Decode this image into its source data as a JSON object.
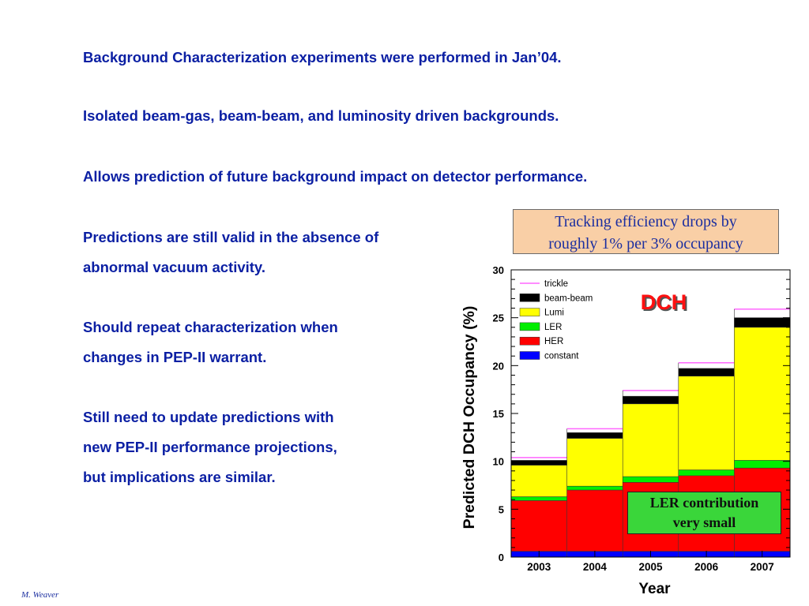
{
  "bullets": [
    {
      "lines": [
        "Background Characterization experiments were performed in Jan’04."
      ]
    },
    {
      "lines": [
        "Isolated beam-gas, beam-beam, and luminosity driven backgrounds."
      ]
    },
    {
      "lines": [
        "Allows prediction of future background impact on detector performance."
      ]
    },
    {
      "lines": [
        "Predictions are still valid in the absence of",
        "abnormal vacuum activity."
      ]
    },
    {
      "lines": [
        "Should repeat characterization when",
        "changes in PEP-II warrant."
      ]
    },
    {
      "lines": [
        "Still need to update predictions with",
        "new PEP-II performance projections,",
        "but implications are similar."
      ]
    }
  ],
  "callout_top": {
    "line1": "Tracking efficiency drops by",
    "line2": "roughly 1% per 3% occupancy"
  },
  "callout_bottom": {
    "line1": "LER contribution",
    "line2": "very small"
  },
  "footer": "M. Weaver",
  "colors": {
    "text": "#0b1fa3",
    "trickle": "#ff66ff",
    "beam-beam": "#000000",
    "Lumi": "#ffff00",
    "LER": "#00ee00",
    "HER": "#ff0000",
    "constant": "#0000ff",
    "dch_label": "#ff1010"
  },
  "chart_data": {
    "type": "bar",
    "stacked": true,
    "categories": [
      "2003",
      "2004",
      "2005",
      "2006",
      "2007"
    ],
    "xlabel": "Year",
    "ylabel": "Predicted DCH Occupancy (%)",
    "ylim": [
      0,
      30
    ],
    "yticks": [
      0,
      5,
      10,
      15,
      20,
      25,
      30
    ],
    "annotation": "DCH",
    "legend_position": "top-left",
    "series": [
      {
        "name": "constant",
        "color": "#0000ff",
        "values": [
          0.6,
          0.6,
          0.6,
          0.6,
          0.6
        ]
      },
      {
        "name": "HER",
        "color": "#ff0000",
        "values": [
          5.3,
          6.4,
          7.2,
          7.9,
          8.7
        ]
      },
      {
        "name": "LER",
        "color": "#00ee00",
        "values": [
          0.4,
          0.4,
          0.6,
          0.6,
          0.8
        ]
      },
      {
        "name": "Lumi",
        "color": "#ffff00",
        "values": [
          3.3,
          5.0,
          7.6,
          9.8,
          13.9
        ]
      },
      {
        "name": "beam-beam",
        "color": "#000000",
        "values": [
          0.5,
          0.6,
          0.8,
          0.8,
          1.0
        ]
      },
      {
        "name": "trickle",
        "color": "#ff66ff",
        "values": [
          0.3,
          0.4,
          0.6,
          0.6,
          0.9
        ]
      }
    ]
  }
}
